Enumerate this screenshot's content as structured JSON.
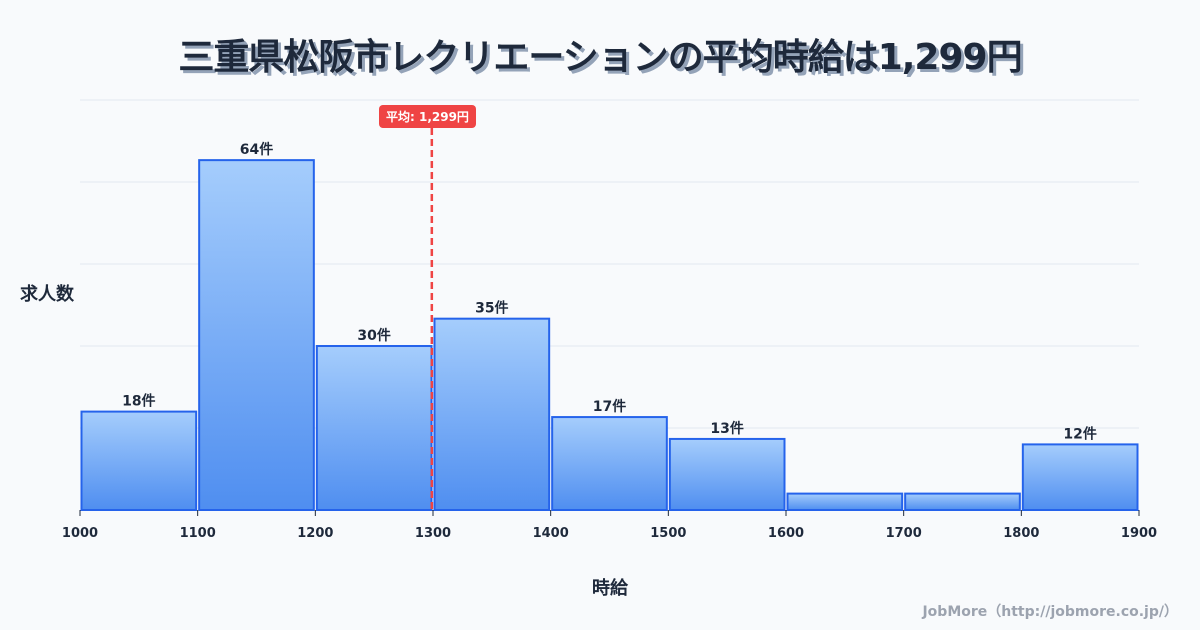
{
  "title": "三重県松阪市レクリエーションの平均時給は1,299円",
  "axis": {
    "y_label": "求人数",
    "x_label": "時給"
  },
  "average": {
    "label": "平均: 1,299円",
    "value": 1299,
    "color": "#ef4444"
  },
  "credit": "JobMore（http://jobmore.co.jp/）",
  "colors": {
    "bar_fill_top": "#a5cdfc",
    "bar_fill_bottom": "#4f8ef0",
    "bar_stroke": "#2563eb",
    "grid": "#e2e8f0",
    "background": "#f8fafc"
  },
  "chart_data": {
    "type": "bar",
    "title": "三重県松阪市レクリエーションの平均時給は1,299円",
    "xlabel": "時給",
    "ylabel": "求人数",
    "bins": [
      1000,
      1100,
      1200,
      1300,
      1400,
      1500,
      1600,
      1700,
      1800,
      1900
    ],
    "categories": [
      "1000-1100",
      "1100-1200",
      "1200-1300",
      "1300-1400",
      "1400-1500",
      "1500-1600",
      "1600-1700",
      "1700-1800",
      "1800-1900"
    ],
    "values": [
      18,
      64,
      30,
      35,
      17,
      13,
      3,
      3,
      12
    ],
    "value_labels": [
      "18件",
      "64件",
      "30件",
      "35件",
      "17件",
      "13件",
      "",
      "",
      "12件"
    ],
    "x_ticks": [
      "1000",
      "1100",
      "1200",
      "1300",
      "1400",
      "1500",
      "1600",
      "1700",
      "1800",
      "1900"
    ],
    "ylim": [
      0,
      75
    ],
    "grid": true,
    "average_line": 1299,
    "average_label": "平均: 1,299円"
  }
}
